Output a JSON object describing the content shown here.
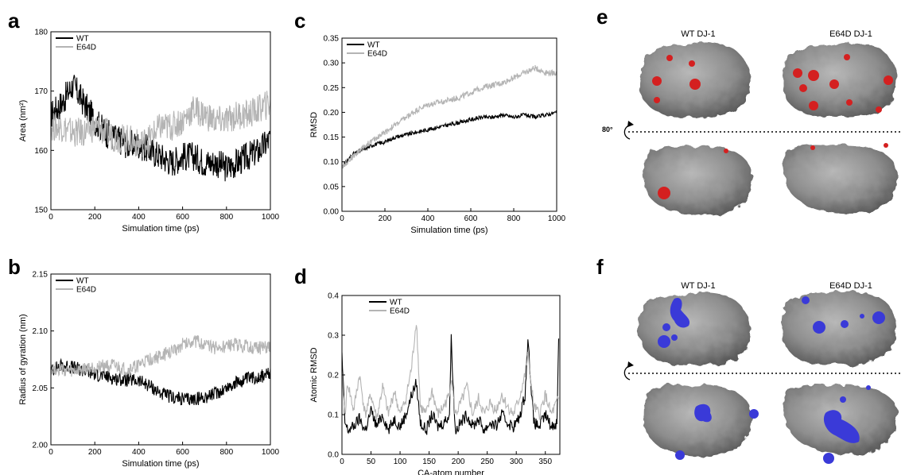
{
  "panels": {
    "a": "a",
    "b": "b",
    "c": "c",
    "d": "d",
    "e": "e",
    "f": "f"
  },
  "colors": {
    "wt": "#000000",
    "e64d": "#b4b4b4",
    "red_patch": "#d42020",
    "blue_patch": "#3a3ad8",
    "protein": "#8c8c8c"
  },
  "chart_data": [
    {
      "id": "a",
      "type": "line",
      "xlabel": "Simulation time (ps)",
      "ylabel": "Area (nm²)",
      "xlim": [
        0,
        1000
      ],
      "ylim": [
        150,
        180
      ],
      "xticks": [
        0,
        200,
        400,
        600,
        800,
        1000
      ],
      "yticks": [
        150,
        160,
        170,
        180
      ],
      "legend": "top-left",
      "series": [
        {
          "name": "WT",
          "color": "#000000",
          "noise": 2.5,
          "x": [
            0,
            50,
            100,
            150,
            200,
            250,
            300,
            350,
            400,
            450,
            500,
            550,
            600,
            650,
            700,
            750,
            800,
            850,
            900,
            950,
            1000
          ],
          "y": [
            166,
            168,
            171,
            168,
            165,
            163,
            162,
            161,
            161,
            160,
            159,
            158,
            159,
            159,
            158,
            158,
            157,
            158,
            159,
            160,
            162
          ]
        },
        {
          "name": "E64D",
          "color": "#b4b4b4",
          "noise": 2.5,
          "x": [
            0,
            50,
            100,
            150,
            200,
            250,
            300,
            350,
            400,
            450,
            500,
            550,
            600,
            650,
            700,
            750,
            800,
            850,
            900,
            950,
            1000
          ],
          "y": [
            164,
            164,
            163,
            163,
            164,
            163,
            162,
            162,
            161,
            162,
            164,
            164,
            165,
            167,
            166,
            165,
            165,
            166,
            166,
            167,
            168
          ]
        }
      ]
    },
    {
      "id": "b",
      "type": "line",
      "xlabel": "Simulation time (ps)",
      "ylabel": "Radius of gyration (nm)",
      "xlim": [
        0,
        1000
      ],
      "ylim": [
        2.0,
        2.15
      ],
      "xticks": [
        0,
        200,
        400,
        600,
        800,
        1000
      ],
      "yticks": [
        2.0,
        2.05,
        2.1,
        2.15
      ],
      "legend": "top-left",
      "series": [
        {
          "name": "WT",
          "color": "#000000",
          "noise": 0.006,
          "x": [
            0,
            50,
            100,
            150,
            200,
            250,
            300,
            350,
            400,
            450,
            500,
            550,
            600,
            650,
            700,
            750,
            800,
            850,
            900,
            950,
            1000
          ],
          "y": [
            2.065,
            2.07,
            2.068,
            2.065,
            2.062,
            2.06,
            2.058,
            2.057,
            2.056,
            2.052,
            2.045,
            2.042,
            2.04,
            2.04,
            2.042,
            2.045,
            2.05,
            2.055,
            2.058,
            2.06,
            2.062
          ]
        },
        {
          "name": "E64D",
          "color": "#b4b4b4",
          "noise": 0.006,
          "x": [
            0,
            50,
            100,
            150,
            200,
            250,
            300,
            350,
            400,
            450,
            500,
            550,
            600,
            650,
            700,
            750,
            800,
            850,
            900,
            950,
            1000
          ],
          "y": [
            2.068,
            2.066,
            2.064,
            2.066,
            2.068,
            2.07,
            2.068,
            2.065,
            2.07,
            2.075,
            2.078,
            2.082,
            2.088,
            2.092,
            2.088,
            2.085,
            2.086,
            2.088,
            2.086,
            2.085,
            2.087
          ]
        }
      ]
    },
    {
      "id": "c",
      "type": "line",
      "xlabel": "Simulation time (ps)",
      "ylabel": "RMSD",
      "xlim": [
        0,
        1000
      ],
      "ylim": [
        0.0,
        0.35
      ],
      "xticks": [
        0,
        200,
        400,
        600,
        800,
        1000
      ],
      "yticks": [
        0.0,
        0.05,
        0.1,
        0.15,
        0.2,
        0.25,
        0.3,
        0.35
      ],
      "legend": "top-left",
      "series": [
        {
          "name": "WT",
          "color": "#000000",
          "noise": 0.004,
          "x": [
            0,
            50,
            100,
            150,
            200,
            250,
            300,
            350,
            400,
            450,
            500,
            550,
            600,
            650,
            700,
            750,
            800,
            850,
            900,
            950,
            1000
          ],
          "y": [
            0.09,
            0.115,
            0.125,
            0.135,
            0.14,
            0.15,
            0.155,
            0.16,
            0.165,
            0.17,
            0.175,
            0.18,
            0.185,
            0.19,
            0.19,
            0.195,
            0.19,
            0.195,
            0.19,
            0.195,
            0.2
          ]
        },
        {
          "name": "E64D",
          "color": "#b4b4b4",
          "noise": 0.006,
          "x": [
            0,
            50,
            100,
            150,
            200,
            250,
            300,
            350,
            400,
            450,
            500,
            550,
            600,
            650,
            700,
            750,
            800,
            850,
            900,
            950,
            1000
          ],
          "y": [
            0.09,
            0.11,
            0.13,
            0.145,
            0.16,
            0.175,
            0.19,
            0.205,
            0.215,
            0.22,
            0.225,
            0.23,
            0.24,
            0.25,
            0.255,
            0.26,
            0.27,
            0.28,
            0.29,
            0.28,
            0.28
          ]
        }
      ]
    },
    {
      "id": "d",
      "type": "line",
      "xlabel": "CA-atom number",
      "ylabel": "Atomic RMSD",
      "xlim": [
        0,
        375
      ],
      "ylim": [
        0.0,
        0.4
      ],
      "xticks": [
        0,
        50,
        100,
        150,
        200,
        250,
        300,
        350
      ],
      "yticks": [
        0.0,
        0.1,
        0.2,
        0.3,
        0.4
      ],
      "legend": "top-right",
      "series": [
        {
          "name": "WT",
          "color": "#000000",
          "noise": 0.0,
          "x": [
            0,
            5,
            10,
            20,
            30,
            40,
            50,
            60,
            70,
            80,
            90,
            100,
            110,
            120,
            128,
            135,
            145,
            155,
            165,
            175,
            185,
            188,
            195,
            205,
            215,
            225,
            235,
            245,
            255,
            265,
            275,
            285,
            295,
            305,
            315,
            320,
            330,
            340,
            350,
            360,
            370,
            373
          ],
          "y": [
            0.25,
            0.08,
            0.06,
            0.07,
            0.09,
            0.06,
            0.11,
            0.07,
            0.1,
            0.06,
            0.09,
            0.07,
            0.1,
            0.15,
            0.18,
            0.08,
            0.06,
            0.1,
            0.07,
            0.08,
            0.1,
            0.29,
            0.06,
            0.08,
            0.1,
            0.07,
            0.09,
            0.06,
            0.08,
            0.07,
            0.1,
            0.08,
            0.07,
            0.09,
            0.15,
            0.29,
            0.08,
            0.07,
            0.1,
            0.07,
            0.08,
            0.29
          ]
        },
        {
          "name": "E64D",
          "color": "#b4b4b4",
          "noise": 0.0,
          "x": [
            0,
            5,
            10,
            20,
            30,
            40,
            50,
            60,
            70,
            80,
            90,
            100,
            110,
            120,
            128,
            135,
            145,
            155,
            165,
            175,
            185,
            188,
            195,
            205,
            215,
            225,
            235,
            245,
            255,
            265,
            275,
            285,
            295,
            305,
            315,
            320,
            330,
            340,
            350,
            360,
            370,
            373
          ],
          "y": [
            0.2,
            0.1,
            0.18,
            0.11,
            0.2,
            0.1,
            0.15,
            0.09,
            0.17,
            0.1,
            0.16,
            0.1,
            0.14,
            0.22,
            0.34,
            0.12,
            0.1,
            0.16,
            0.1,
            0.12,
            0.15,
            0.2,
            0.1,
            0.13,
            0.17,
            0.1,
            0.14,
            0.1,
            0.13,
            0.11,
            0.15,
            0.12,
            0.1,
            0.14,
            0.2,
            0.25,
            0.12,
            0.1,
            0.15,
            0.1,
            0.13,
            0.14
          ]
        }
      ]
    }
  ],
  "structures": {
    "rotation_label": "80°",
    "e": {
      "left_title": "WT DJ-1",
      "right_title": "E64D DJ-1"
    },
    "f": {
      "left_title": "WT DJ-1",
      "right_title": "E64D DJ-1"
    }
  }
}
